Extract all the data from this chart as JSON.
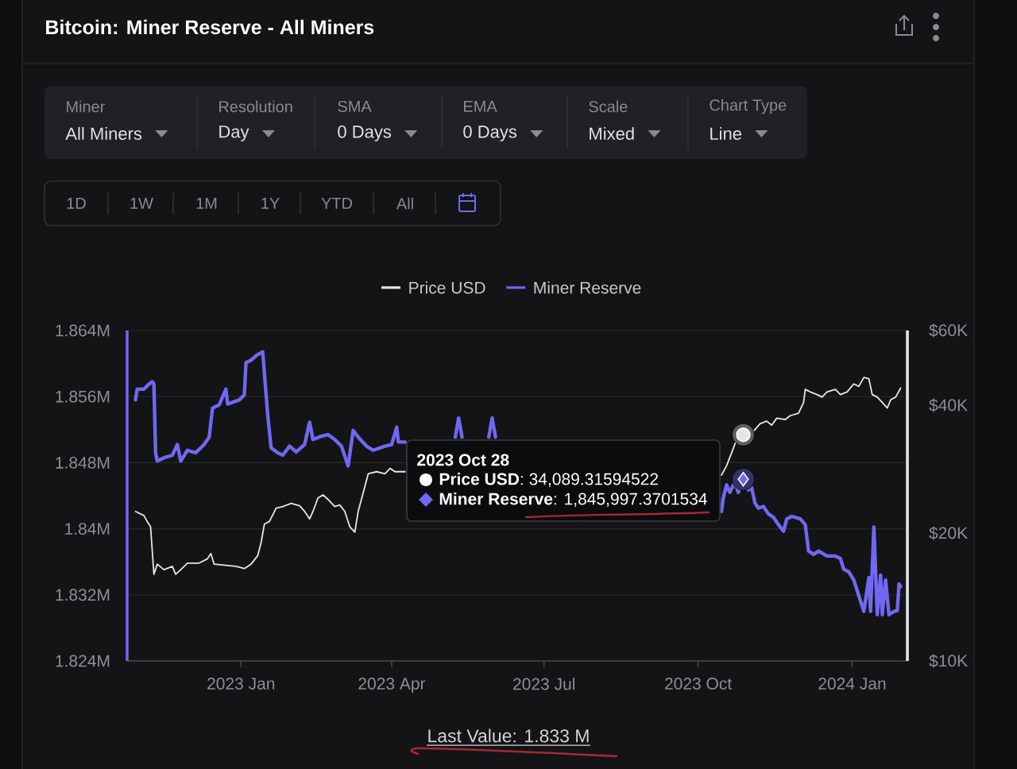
{
  "chart_data": {
    "type": "line",
    "title": "Bitcoin: Miner Reserve - All Miners",
    "xlim": [
      "2022-10-25",
      "2024-02-03"
    ],
    "xticks": [
      {
        "value": "2023-01-01",
        "label": "2023 Jan"
      },
      {
        "value": "2023-04-01",
        "label": "2023 Apr"
      },
      {
        "value": "2023-07-01",
        "label": "2023 Jul"
      },
      {
        "value": "2023-10-01",
        "label": "2023 Oct"
      },
      {
        "value": "2024-01-01",
        "label": "2024 Jan"
      }
    ],
    "ylim": [
      1824000,
      1864000
    ],
    "yticks": [
      {
        "value": 1824000,
        "label": "1.824M"
      },
      {
        "value": 1832000,
        "label": "1.832M"
      },
      {
        "value": 1840000,
        "label": "1.84M"
      },
      {
        "value": 1848000,
        "label": "1.848M"
      },
      {
        "value": 1856000,
        "label": "1.856M"
      },
      {
        "value": 1864000,
        "label": "1.864M"
      }
    ],
    "y2lim": [
      10000,
      60000
    ],
    "y2ticks": [
      {
        "value": 10000,
        "label": "$10K"
      },
      {
        "value": 20000,
        "label": "$20K"
      },
      {
        "value": 40000,
        "label": "$40K"
      },
      {
        "value": 60000,
        "label": "$60K"
      }
    ],
    "log": "y2",
    "grid": "y",
    "legend": "top",
    "series": [
      {
        "name": "Price USD",
        "color": "#e6e6e6",
        "axis": "y2",
        "x": [
          "2022-10-30",
          "2022-11-04",
          "2022-11-06",
          "2022-11-08",
          "2022-11-10",
          "2022-11-12",
          "2022-11-16",
          "2022-11-21",
          "2022-11-23",
          "2022-11-26",
          "2022-11-30",
          "2022-12-07",
          "2022-12-12",
          "2022-12-14",
          "2022-12-16",
          "2022-12-23",
          "2022-12-29",
          "2023-01-03",
          "2023-01-07",
          "2023-01-11",
          "2023-01-13",
          "2023-01-15",
          "2023-01-18",
          "2023-01-22",
          "2023-01-26",
          "2023-01-31",
          "2023-02-05",
          "2023-02-08",
          "2023-02-11",
          "2023-02-13",
          "2023-02-16",
          "2023-02-19",
          "2023-02-22",
          "2023-02-26",
          "2023-03-01",
          "2023-03-04",
          "2023-03-07",
          "2023-03-10",
          "2023-03-12",
          "2023-03-15",
          "2023-03-18",
          "2023-03-23",
          "2023-03-28",
          "2023-03-31",
          "2023-04-03",
          "2023-04-09",
          "2023-04-10",
          "2023-10-15",
          "2023-10-18",
          "2023-10-21",
          "2023-10-24",
          "2023-10-28",
          "2023-11-03",
          "2023-11-07",
          "2023-11-11",
          "2023-11-14",
          "2023-11-17",
          "2023-11-22",
          "2023-11-25",
          "2023-11-30",
          "2023-12-03",
          "2023-12-04",
          "2023-12-07",
          "2023-12-11",
          "2023-12-14",
          "2023-12-17",
          "2023-12-22",
          "2023-12-25",
          "2023-12-29",
          "2024-01-02",
          "2024-01-05",
          "2024-01-08",
          "2024-01-11",
          "2024-01-13",
          "2024-01-16",
          "2024-01-19",
          "2024-01-22",
          "2024-01-24",
          "2024-01-27",
          "2024-01-30"
        ],
        "values": [
          22500,
          22000,
          21300,
          20700,
          16000,
          16900,
          16400,
          16700,
          16000,
          16400,
          17000,
          17000,
          17400,
          17900,
          16900,
          16800,
          16700,
          16500,
          16900,
          17700,
          19000,
          21000,
          21300,
          22900,
          23100,
          23500,
          23200,
          22500,
          21600,
          22500,
          24200,
          24600,
          24000,
          23100,
          23300,
          22500,
          20700,
          20100,
          22500,
          24900,
          27600,
          27900,
          27600,
          28400,
          27900,
          27900,
          null,
          27400,
          28800,
          30900,
          33200,
          34089.31594522,
          34700,
          36200,
          36700,
          35900,
          37300,
          37000,
          37800,
          38300,
          40600,
          43600,
          43000,
          42400,
          41800,
          43000,
          43600,
          42400,
          43000,
          44900,
          44300,
          46500,
          46200,
          42400,
          41800,
          40600,
          39400,
          41200,
          41800,
          43900
        ]
      },
      {
        "name": "Miner Reserve",
        "color": "#7068f0",
        "x": [
          "2022-10-30",
          "2022-10-31",
          "2022-11-04",
          "2022-11-07",
          "2022-11-09",
          "2022-11-10",
          "2022-11-11",
          "2022-11-12",
          "2022-11-16",
          "2022-11-21",
          "2022-11-24",
          "2022-11-26",
          "2022-11-30",
          "2022-12-05",
          "2022-12-10",
          "2022-12-13",
          "2022-12-15",
          "2022-12-19",
          "2022-12-23",
          "2022-12-24",
          "2022-12-31",
          "2023-01-03",
          "2023-01-04",
          "2023-01-07",
          "2023-01-11",
          "2023-01-14",
          "2023-01-15",
          "2023-01-17",
          "2023-01-19",
          "2023-01-23",
          "2023-01-26",
          "2023-01-30",
          "2023-02-03",
          "2023-02-08",
          "2023-02-11",
          "2023-02-13",
          "2023-02-18",
          "2023-02-22",
          "2023-02-26",
          "2023-03-02",
          "2023-03-06",
          "2023-03-09",
          "2023-03-12",
          "2023-03-17",
          "2023-03-21",
          "2023-03-28",
          "2023-04-01",
          "2023-04-04",
          "2023-04-05",
          "2023-04-09",
          "2023-04-10",
          "2023-05-09",
          "2023-05-11",
          "2023-05-13",
          "2023-05-20",
          "2023-05-29",
          "2023-05-31",
          "2023-06-02",
          "2023-06-10",
          "2023-10-15",
          "2023-10-16",
          "2023-10-18",
          "2023-10-20",
          "2023-10-23",
          "2023-10-25",
          "2023-10-28",
          "2023-10-31",
          "2023-11-02",
          "2023-11-04",
          "2023-11-06",
          "2023-11-09",
          "2023-11-12",
          "2023-11-15",
          "2023-11-18",
          "2023-11-21",
          "2023-11-23",
          "2023-11-26",
          "2023-12-01",
          "2023-12-04",
          "2023-12-06",
          "2023-12-09",
          "2023-12-12",
          "2023-12-17",
          "2023-12-22",
          "2023-12-25",
          "2023-12-27",
          "2023-12-30",
          "2024-01-02",
          "2024-01-05",
          "2024-01-08",
          "2024-01-11",
          "2024-01-12",
          "2024-01-14",
          "2024-01-16",
          "2024-01-18",
          "2024-01-19",
          "2024-01-21",
          "2024-01-23",
          "2024-01-26",
          "2024-01-28",
          "2024-01-29",
          "2024-01-30"
        ],
        "values": [
          1855600,
          1856900,
          1856900,
          1857500,
          1857800,
          1857500,
          1849200,
          1848200,
          1848600,
          1848900,
          1850200,
          1848200,
          1849500,
          1849200,
          1850200,
          1851100,
          1854600,
          1855000,
          1856900,
          1855100,
          1855600,
          1856200,
          1860100,
          1860400,
          1861100,
          1861400,
          1858800,
          1853700,
          1849800,
          1849200,
          1848900,
          1850000,
          1849300,
          1850200,
          1852900,
          1850800,
          1851200,
          1851400,
          1850800,
          1850000,
          1847600,
          1851900,
          1851100,
          1850000,
          1849500,
          1850000,
          1850200,
          1852300,
          1850500,
          1850500,
          null,
          1851100,
          1853400,
          1851100,
          null,
          1851100,
          1853400,
          1851100,
          null,
          1842100,
          1843700,
          1845300,
          1844400,
          1845700,
          1844400,
          1845997.3701534,
          1844700,
          1845000,
          1843100,
          1842500,
          1842700,
          1841800,
          1841400,
          1840500,
          1839700,
          1841200,
          1841500,
          1841200,
          1840500,
          1837300,
          1836900,
          1837300,
          1836700,
          1836700,
          1836400,
          1835100,
          1834800,
          1833800,
          1831900,
          1830000,
          1834100,
          1830000,
          1840200,
          1829600,
          1834400,
          1829600,
          1833800,
          1829600,
          1830000,
          1830100,
          1833300,
          1833000
        ]
      }
    ],
    "annotations": [
      "Miner",
      "All Miners",
      "Resolution",
      "Day",
      "SMA",
      "0 Days",
      "EMA",
      "0 Days",
      "Scale",
      "Mixed",
      "Chart Type",
      "Line",
      "1D",
      "1W",
      "1M",
      "1Y",
      "YTD",
      "All",
      "2023 Oct 28",
      "**Price USD**: 34,089.31594522",
      {
        "text": "**Miner Reserve**: 1,845,997.3701534",
        "x": "2023-10-28",
        "y": 1845997.3701534
      },
      "Last Value: 1.833 M"
    ]
  }
}
